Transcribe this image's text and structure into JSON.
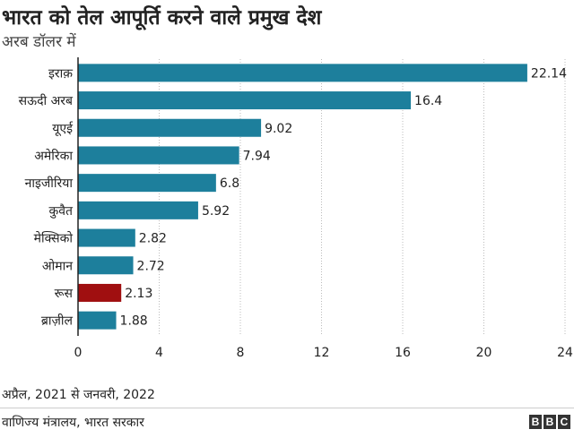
{
  "chart_data": {
    "type": "bar",
    "orientation": "horizontal",
    "title": "भारत को तेल आपूर्ति करने वाले प्रमुख देश",
    "subtitle": "अरब डॉलर में",
    "categories": [
      "इराक़",
      "सऊदी अरब",
      "यूएई",
      "अमेरिका",
      "नाइजीरिया",
      "कुवैत",
      "मेक्सिको",
      "ओमान",
      "रूस",
      "ब्राज़ील"
    ],
    "values": [
      22.14,
      16.4,
      9.02,
      7.94,
      6.8,
      5.92,
      2.82,
      2.72,
      2.13,
      1.88
    ],
    "value_labels": [
      "22.14",
      "16.4",
      "9.02",
      "7.94",
      "6.8",
      "5.92",
      "2.82",
      "2.72",
      "2.13",
      "1.88"
    ],
    "highlight_category": "रूस",
    "xlim": [
      0,
      24
    ],
    "xticks": [
      0,
      4,
      8,
      12,
      16,
      20,
      24
    ],
    "grid": "vertical-dotted",
    "note": "अप्रैल, 2021 से जनवरी, 2022",
    "source": "वाणिज्य मंत्रालय, भारत सरकार"
  },
  "brand": {
    "logo_letters": [
      "B",
      "B",
      "C"
    ]
  },
  "colors": {
    "bar": "#1d7f9c",
    "highlight": "#a00f10",
    "grid": "#bbbbbb",
    "axis": "#222222"
  }
}
